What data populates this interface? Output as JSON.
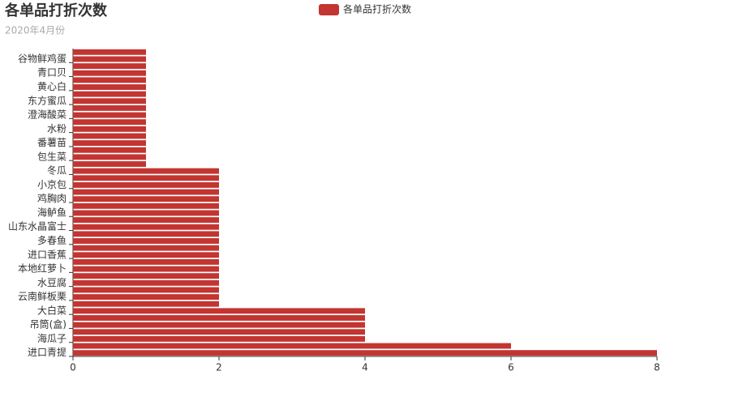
{
  "chart_data": {
    "type": "bar",
    "orientation": "horizontal",
    "title": "各单品打折次数",
    "subtitle": "2020年4月份",
    "categories": [
      "进口青提",
      null,
      "海瓜子",
      null,
      "吊筒(盒)",
      null,
      "大白菜",
      null,
      "云南鲜板栗",
      null,
      "水豆腐",
      null,
      "本地红萝卜",
      null,
      "进口香蕉",
      null,
      "多春鱼",
      null,
      "山东水晶富士",
      null,
      "海鲈鱼",
      null,
      "鸡胸肉",
      null,
      "小京包",
      null,
      "冬瓜",
      null,
      "包生菜",
      null,
      "番薯苗",
      null,
      "水粉",
      null,
      "澄海酸菜",
      null,
      "东方蜜瓜",
      null,
      "黄心白",
      null,
      "青口贝",
      null,
      "谷物鲜鸡蛋",
      null
    ],
    "series": [
      {
        "name": "各单品打折次数",
        "color": "#c23531",
        "values": [
          8,
          6,
          4,
          4,
          4,
          4,
          4,
          2,
          2,
          2,
          2,
          2,
          2,
          2,
          2,
          2,
          2,
          2,
          2,
          2,
          2,
          2,
          2,
          2,
          2,
          2,
          2,
          1,
          1,
          1,
          1,
          1,
          1,
          1,
          1,
          1,
          1,
          1,
          1,
          1,
          1,
          1,
          1,
          1
        ]
      }
    ],
    "xlim": [
      0,
      8
    ],
    "xticks": [
      0,
      2,
      4,
      6,
      8
    ],
    "legend": "top"
  }
}
